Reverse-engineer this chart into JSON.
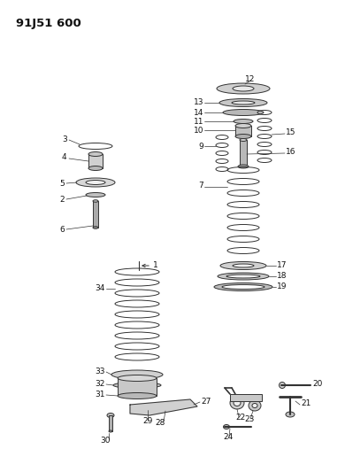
{
  "title": "91J51 600",
  "bg_color": "#ffffff",
  "line_color": "#333333",
  "label_fontsize": 6.5,
  "fig_width": 3.9,
  "fig_height": 5.33,
  "dpi": 100
}
